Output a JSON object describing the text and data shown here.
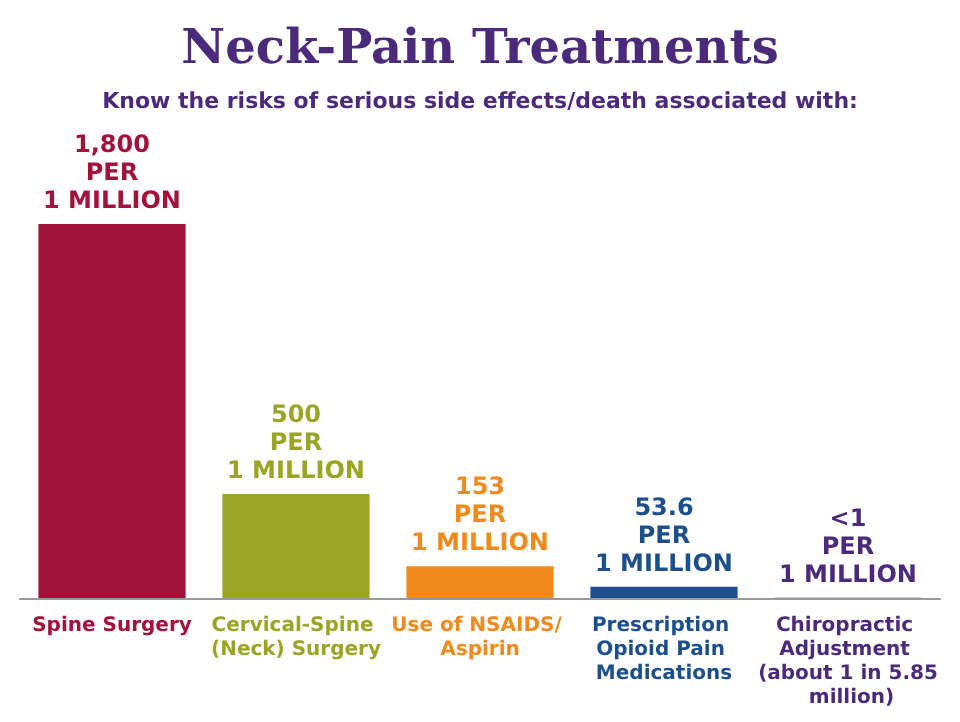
{
  "chart_data": {
    "type": "bar",
    "title": "Neck-Pain Treatments",
    "subtitle": "Know the risks of serious side effects/death associated with:",
    "categories": [
      "Spine Surgery",
      "Cervical-Spine (Neck) Surgery",
      "Use of NSAIDS/ Aspirin",
      "Prescription Opioid Pain Medications",
      "Chiropractic Adjustment (about 1 in 5.85 million)"
    ],
    "values": [
      1800,
      500,
      153,
      53.6,
      1
    ],
    "colors": [
      "#a3123a",
      "#9aa526",
      "#f08a1d",
      "#1d4f8c",
      "#4b2a7b"
    ],
    "value_labels": [
      "1,800\nPER\n1 MILLION",
      "500\nPER\n1 MILLION",
      "153\nPER\n1 MILLION",
      "53.6\nPER\n1 MILLION",
      "<1\nPER\n1 MILLION"
    ]
  }
}
